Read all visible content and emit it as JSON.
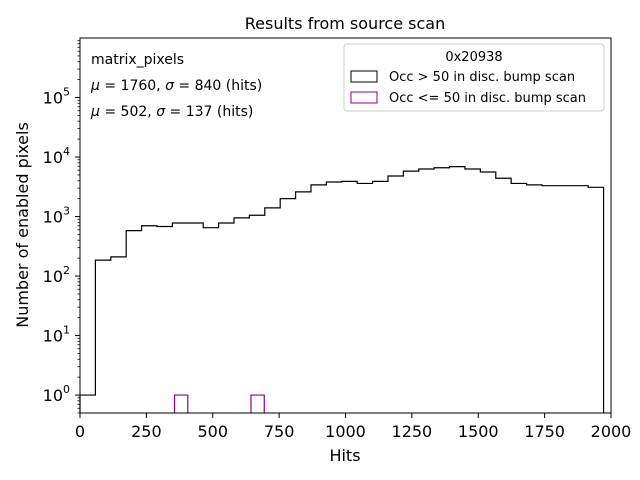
{
  "chart_data": {
    "type": "histogram",
    "title": "Results from source scan",
    "xlabel": "Hits",
    "ylabel": "Number of enabled pixels",
    "xlim": [
      0,
      2000
    ],
    "ylim": [
      0.5,
      1000000
    ],
    "yscale": "log",
    "grid": false,
    "x_ticks": [
      0,
      250,
      500,
      750,
      1000,
      1250,
      1500,
      1750,
      2000
    ],
    "x_tick_labels": [
      "0",
      "250",
      "500",
      "750",
      "1000",
      "1250",
      "1500",
      "1750",
      "2000"
    ],
    "y_ticks": [
      1,
      10,
      100,
      1000,
      10000,
      100000
    ],
    "y_tick_labels": [
      {
        "base": "10",
        "exp": "0"
      },
      {
        "base": "10",
        "exp": "1"
      },
      {
        "base": "10",
        "exp": "2"
      },
      {
        "base": "10",
        "exp": "3"
      },
      {
        "base": "10",
        "exp": "4"
      },
      {
        "base": "10",
        "exp": "5"
      }
    ],
    "annotations": {
      "label": "matrix_pixels",
      "stats_occ": {
        "mu_sym": "μ",
        "mu": " = 1760, ",
        "sigma_sym": "σ",
        "sigma": " = 840 (hits)",
        "color": "#000000"
      },
      "stats_low": {
        "mu_sym": "μ",
        "mu": " = 502, ",
        "sigma_sym": "σ",
        "sigma": " = 137 (hits)",
        "color": "#8b008b"
      }
    },
    "legend": {
      "title": "0x20938",
      "position": "top-right",
      "entries": [
        {
          "label": "Occ > 50 in disc. bump scan",
          "color": "#000000"
        },
        {
          "label": "Occ <= 50 in disc. bump scan",
          "color": "#8b008b"
        }
      ]
    },
    "series": [
      {
        "name": "Occ > 50 in disc. bump scan",
        "color": "#000000",
        "bin_edges": [
          0,
          58,
          116,
          174,
          232,
          290,
          348,
          406,
          464,
          522,
          580,
          638,
          696,
          754,
          812,
          870,
          928,
          986,
          1044,
          1102,
          1160,
          1218,
          1276,
          1334,
          1392,
          1450,
          1508,
          1566,
          1624,
          1682,
          1740,
          1798,
          1856,
          1914,
          1972
        ],
        "values": [
          1,
          185,
          210,
          580,
          700,
          680,
          780,
          780,
          650,
          780,
          950,
          1050,
          1400,
          2000,
          2600,
          3400,
          3800,
          3900,
          3600,
          3900,
          4800,
          5800,
          6300,
          6600,
          6900,
          6300,
          5600,
          4400,
          3600,
          3400,
          3300,
          3300,
          3300,
          3100
        ]
      },
      {
        "name": "Occ <= 50 in disc. bump scan",
        "color": "#8b008b",
        "bins": [
          {
            "x0": 356,
            "x1": 406,
            "value": 1
          },
          {
            "x0": 644,
            "x1": 694,
            "value": 1
          }
        ]
      }
    ]
  }
}
